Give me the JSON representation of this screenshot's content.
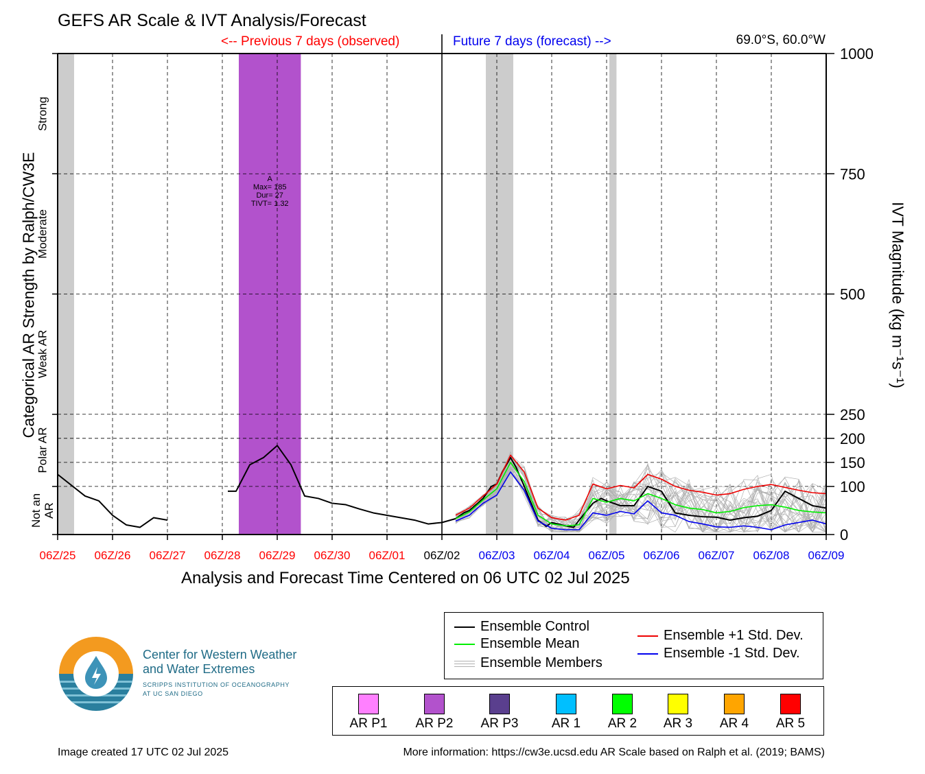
{
  "header": {
    "title": "GEFS AR Scale & IVT Analysis/Forecast",
    "previous_label": "<-- Previous 7 days (observed)",
    "future_label": "Future 7 days (forecast) -->",
    "location": "69.0°S, 60.0°W"
  },
  "chart_data": {
    "type": "line",
    "title": "GEFS AR Scale & IVT Analysis/Forecast",
    "xlabel": "Analysis and Forecast Time Centered on 06 UTC 02 Jul 2025",
    "ylabel_left": "Categorical AR Strength by Ralph/CW3E",
    "ylabel_right": "IVT Magnitude (kg m⁻¹s⁻¹)",
    "ylim": [
      0,
      1000
    ],
    "xlim": [
      0,
      14
    ],
    "x_tick_labels": [
      "06Z/25",
      "06Z/26",
      "06Z/27",
      "06Z/28",
      "06Z/29",
      "06Z/30",
      "06Z/01",
      "06Z/02",
      "06Z/03",
      "06Z/04",
      "06Z/05",
      "06Z/06",
      "06Z/07",
      "06Z/08",
      "06Z/09"
    ],
    "x_tick_colors": [
      "#ff0000",
      "#ff0000",
      "#ff0000",
      "#ff0000",
      "#ff0000",
      "#ff0000",
      "#ff0000",
      "#000000",
      "#0000ee",
      "#0000ee",
      "#0000ee",
      "#0000ee",
      "#0000ee",
      "#0000ee",
      "#0000ee"
    ],
    "y_right_ticks": [
      0,
      100,
      150,
      200,
      250,
      500,
      750,
      1000
    ],
    "grid": true,
    "categories": [
      {
        "label": "Not an\nAR",
        "ymin": 0,
        "ymax": 100
      },
      {
        "label": "Polar AR",
        "ymin": 100,
        "ymax": 250
      },
      {
        "label": "Weak AR",
        "ymin": 250,
        "ymax": 500
      },
      {
        "label": "Moderate",
        "ymin": 500,
        "ymax": 750
      },
      {
        "label": "Strong",
        "ymin": 750,
        "ymax": 1000
      }
    ],
    "gray_periods": [
      [
        0,
        0.3
      ],
      [
        7.8,
        8.3
      ],
      [
        10.05,
        10.18
      ]
    ],
    "ar_events": [
      {
        "start": 3.3,
        "end": 4.43,
        "color": "#b252cc",
        "label": [
          "A",
          "Max= 185",
          "Dur= 27",
          "TIVT= 1.32"
        ]
      }
    ],
    "series": [
      {
        "name": "Ensemble Control",
        "color": "#000000",
        "segments": [
          [
            [
              0,
              125
            ],
            [
              0.5,
              80
            ],
            [
              0.75,
              70
            ],
            [
              1,
              40
            ],
            [
              1.25,
              20
            ],
            [
              1.5,
              15
            ],
            [
              1.75,
              35
            ],
            [
              2,
              30
            ]
          ],
          [
            [
              3.1,
              90
            ],
            [
              3.25,
              90
            ],
            [
              3.5,
              145
            ],
            [
              3.75,
              160
            ],
            [
              4,
              185
            ],
            [
              4.25,
              145
            ],
            [
              4.5,
              80
            ],
            [
              4.75,
              75
            ],
            [
              5,
              65
            ],
            [
              5.25,
              62
            ],
            [
              5.5,
              53
            ],
            [
              5.75,
              45
            ],
            [
              6,
              40
            ],
            [
              6.25,
              35
            ],
            [
              6.5,
              30
            ],
            [
              6.75,
              22
            ],
            [
              7,
              25
            ],
            [
              7.25,
              33
            ]
          ],
          [
            [
              7.25,
              33
            ],
            [
              7.4,
              45
            ],
            [
              7.5,
              50
            ],
            [
              7.75,
              75
            ],
            [
              7.9,
              100
            ],
            [
              8,
              105
            ],
            [
              8.1,
              130
            ],
            [
              8.25,
              160
            ],
            [
              8.35,
              140
            ],
            [
              8.5,
              100
            ],
            [
              8.75,
              30
            ],
            [
              8.9,
              17
            ],
            [
              9,
              25
            ],
            [
              9.25,
              18
            ],
            [
              9.4,
              15
            ],
            [
              9.5,
              30
            ],
            [
              9.75,
              65
            ],
            [
              9.9,
              75
            ],
            [
              10,
              70
            ],
            [
              10.25,
              60
            ],
            [
              10.5,
              60
            ],
            [
              10.75,
              100
            ],
            [
              11,
              90
            ],
            [
              11.25,
              45
            ],
            [
              11.5,
              40
            ],
            [
              11.75,
              37
            ],
            [
              12,
              36
            ],
            [
              12.25,
              30
            ],
            [
              12.5,
              35
            ],
            [
              12.75,
              38
            ],
            [
              13,
              50
            ],
            [
              13.25,
              90
            ],
            [
              13.5,
              75
            ],
            [
              13.75,
              60
            ],
            [
              14,
              55
            ]
          ]
        ]
      },
      {
        "name": "Ensemble Mean",
        "color": "#00ee00",
        "segments": [
          [
            [
              7.25,
              33
            ],
            [
              7.5,
              47
            ],
            [
              7.75,
              72
            ],
            [
              8,
              95
            ],
            [
              8.25,
              150
            ],
            [
              8.5,
              110
            ],
            [
              8.75,
              40
            ],
            [
              9,
              22
            ],
            [
              9.25,
              18
            ],
            [
              9.5,
              20
            ],
            [
              9.75,
              75
            ],
            [
              10,
              67
            ],
            [
              10.25,
              75
            ],
            [
              10.5,
              70
            ],
            [
              10.75,
              85
            ],
            [
              11,
              75
            ],
            [
              11.25,
              62
            ],
            [
              11.5,
              55
            ],
            [
              11.75,
              52
            ],
            [
              12,
              45
            ],
            [
              12.25,
              48
            ],
            [
              12.5,
              56
            ],
            [
              12.75,
              60
            ],
            [
              13,
              62
            ],
            [
              13.25,
              57
            ],
            [
              13.5,
              50
            ],
            [
              13.75,
              47
            ],
            [
              14,
              45
            ]
          ]
        ]
      },
      {
        "name": "Ensemble +1 Std. Dev.",
        "color": "#ee0000",
        "segments": [
          [
            [
              7.25,
              40
            ],
            [
              7.5,
              55
            ],
            [
              7.75,
              80
            ],
            [
              8,
              105
            ],
            [
              8.25,
              165
            ],
            [
              8.5,
              130
            ],
            [
              8.75,
              55
            ],
            [
              9,
              35
            ],
            [
              9.25,
              30
            ],
            [
              9.5,
              40
            ],
            [
              9.75,
              105
            ],
            [
              10,
              95
            ],
            [
              10.25,
              102
            ],
            [
              10.5,
              97
            ],
            [
              10.75,
              125
            ],
            [
              11,
              115
            ],
            [
              11.25,
              100
            ],
            [
              11.5,
              92
            ],
            [
              11.75,
              88
            ],
            [
              12,
              82
            ],
            [
              12.25,
              85
            ],
            [
              12.5,
              94
            ],
            [
              12.75,
              100
            ],
            [
              13,
              104
            ],
            [
              13.25,
              98
            ],
            [
              13.5,
              92
            ],
            [
              13.75,
              87
            ],
            [
              14,
              85
            ]
          ]
        ]
      },
      {
        "name": "Ensemble -1 Std. Dev.",
        "color": "#0000ee",
        "segments": [
          [
            [
              7.25,
              28
            ],
            [
              7.5,
              40
            ],
            [
              7.75,
              65
            ],
            [
              8,
              82
            ],
            [
              8.25,
              130
            ],
            [
              8.5,
              92
            ],
            [
              8.75,
              28
            ],
            [
              9,
              13
            ],
            [
              9.25,
              10
            ],
            [
              9.5,
              10
            ],
            [
              9.75,
              45
            ],
            [
              10,
              40
            ],
            [
              10.25,
              48
            ],
            [
              10.5,
              43
            ],
            [
              10.75,
              70
            ],
            [
              11,
              45
            ],
            [
              11.25,
              40
            ],
            [
              11.5,
              27
            ],
            [
              11.75,
              22
            ],
            [
              12,
              16
            ],
            [
              12.25,
              15
            ],
            [
              12.5,
              18
            ],
            [
              12.75,
              15
            ],
            [
              13,
              10
            ],
            [
              13.25,
              20
            ],
            [
              13.5,
              25
            ],
            [
              13.75,
              30
            ],
            [
              14,
              22
            ]
          ]
        ]
      }
    ],
    "members_color": "#b0b0b0"
  },
  "legend": {
    "items": [
      {
        "label": "Ensemble Control",
        "color": "#000000"
      },
      {
        "label": "Ensemble Mean",
        "color": "#00ee00"
      },
      {
        "label": "Ensemble Members",
        "color": "#b0b0b0"
      },
      {
        "label": "Ensemble +1 Std. Dev.",
        "color": "#ee0000"
      },
      {
        "label": "Ensemble -1 Std. Dev.",
        "color": "#0000ee"
      }
    ]
  },
  "ar_scale": [
    {
      "label": "AR P1",
      "color": "#ff80ff"
    },
    {
      "label": "AR P2",
      "color": "#b252cc"
    },
    {
      "label": "AR P3",
      "color": "#5a3f8e"
    },
    {
      "label": "AR 1",
      "color": "#00bfff"
    },
    {
      "label": "AR 2",
      "color": "#00ff00"
    },
    {
      "label": "AR 3",
      "color": "#ffff00"
    },
    {
      "label": "AR 4",
      "color": "#ffa500"
    },
    {
      "label": "AR 5",
      "color": "#ff0000"
    }
  ],
  "logo": {
    "line1": "Center for Western Weather",
    "line2": "and Water Extremes",
    "line3": "SCRIPPS INSTITUTION OF OCEANOGRAPHY",
    "line4": "AT UC SAN DIEGO"
  },
  "footer": {
    "created": "Image created 17 UTC 02 Jul 2025",
    "more_info": "More information: https://cw3e.ucsd.edu AR Scale based on Ralph et al. (2019; BAMS)"
  }
}
